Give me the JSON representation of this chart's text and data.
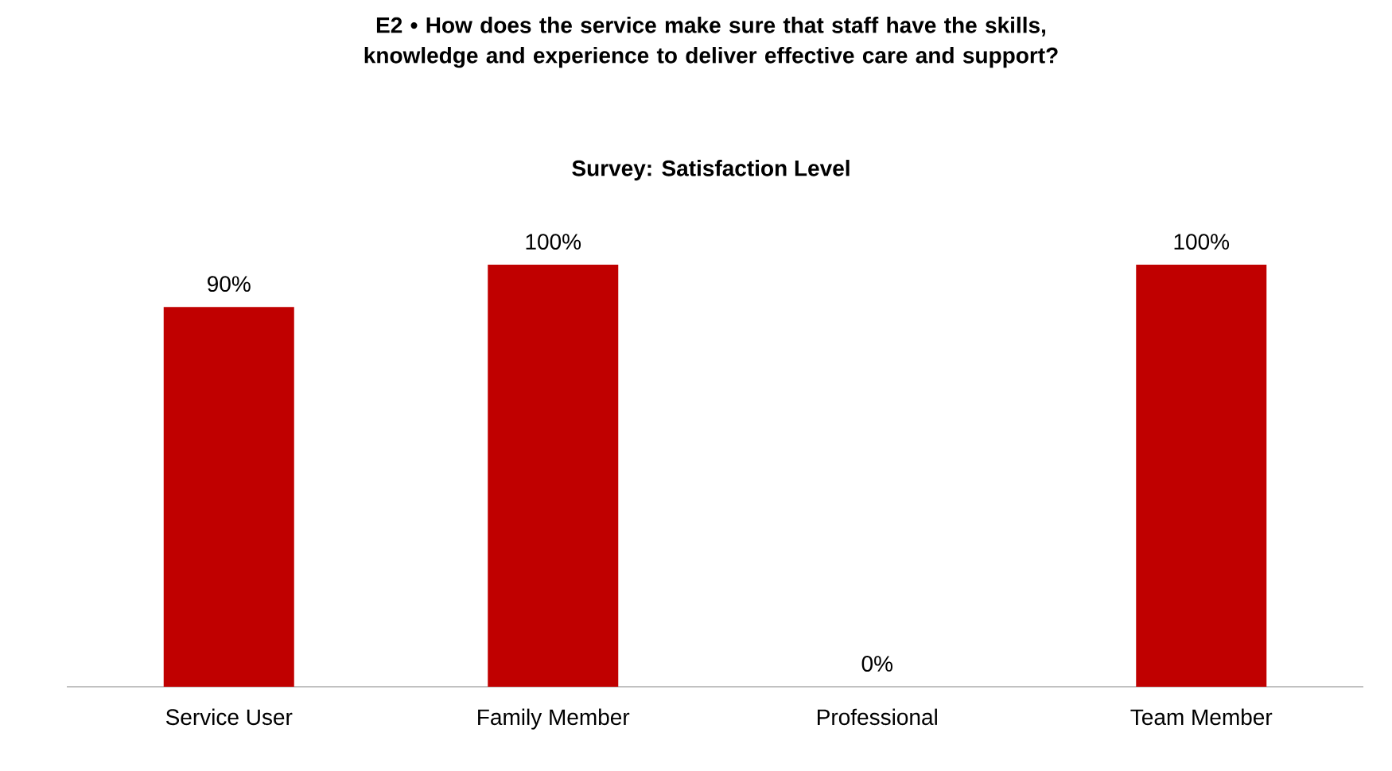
{
  "chart_data": {
    "type": "bar",
    "title": "E2 • How does the service make sure that staff have the skills, knowledge and experience to deliver effective care and support?",
    "subtitle": "Survey: Satisfaction Level",
    "categories": [
      "Service User",
      "Family Member",
      "Professional",
      "Team Member"
    ],
    "values": [
      90,
      100,
      0,
      100
    ],
    "value_labels": [
      "90%",
      "100%",
      "0%",
      "100%"
    ],
    "color": "#c00000"
  }
}
